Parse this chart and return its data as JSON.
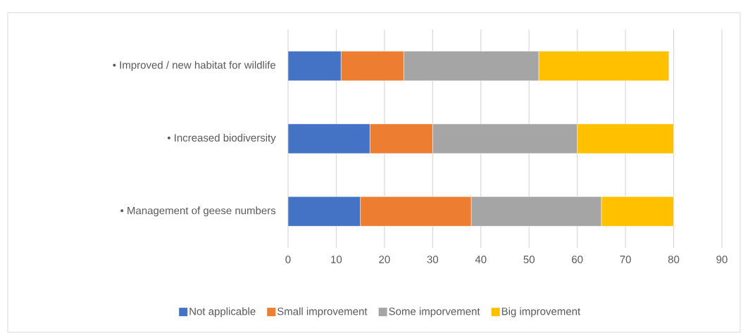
{
  "chart_data": {
    "type": "bar",
    "orientation": "horizontal",
    "stacked": true,
    "categories": [
      "• Improved / new habitat for wildlife",
      "• Increased biodiversity",
      "• Management of geese numbers"
    ],
    "series": [
      {
        "name": "Not applicable",
        "color": "#4472c4",
        "values": [
          11,
          17,
          15
        ]
      },
      {
        "name": "Small improvement",
        "color": "#ed7d31",
        "values": [
          13,
          13,
          23
        ]
      },
      {
        "name": "Some imporvement",
        "color": "#a5a5a5",
        "values": [
          28,
          30,
          27
        ]
      },
      {
        "name": "Big improvement",
        "color": "#ffc000",
        "values": [
          27,
          20,
          15
        ]
      }
    ],
    "xlim": [
      0,
      90
    ],
    "xticks": [
      0,
      10,
      20,
      30,
      40,
      50,
      60,
      70,
      80,
      90
    ],
    "grid": "x",
    "legend": "bottom"
  }
}
